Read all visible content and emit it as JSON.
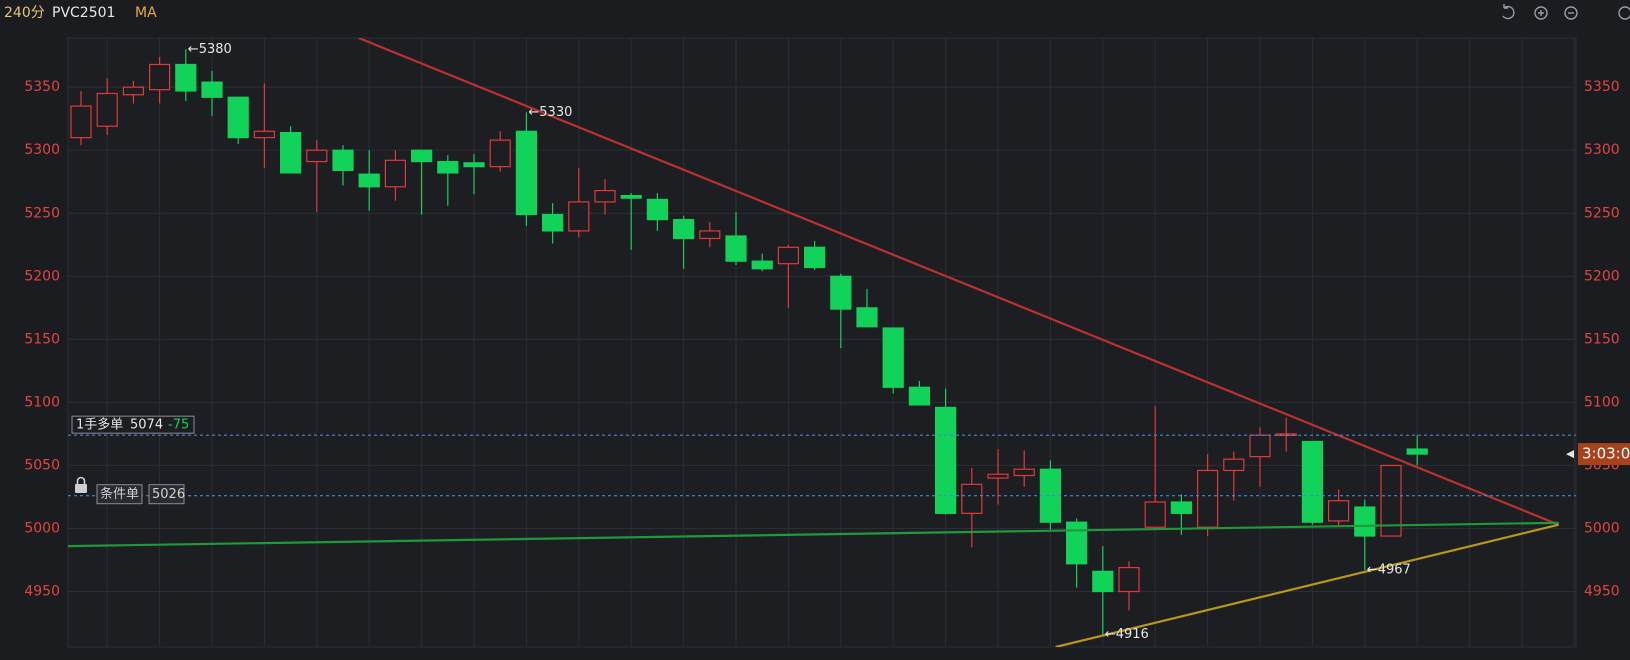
{
  "header": {
    "period": "240分",
    "symbol": "PVC2501",
    "indicator": "MA"
  },
  "chart_data": {
    "type": "candlestick",
    "open": [
      5310,
      5319,
      5344,
      5348,
      5368,
      5354,
      5342,
      5310,
      5314,
      5291,
      5300,
      5281,
      5271,
      5300,
      5291,
      5290,
      5287,
      5315,
      5249,
      5236,
      5259,
      5264,
      5261,
      5245,
      5230,
      5232,
      5212,
      5210,
      5223,
      5200,
      5175,
      5159,
      5112,
      5096,
      5012,
      5040,
      5042,
      5047,
      5005,
      4966,
      4950,
      5001,
      5021,
      5001,
      5046,
      5057,
      5074,
      5069,
      5006,
      5017,
      4994,
      5063
    ],
    "high": [
      5347,
      5357,
      5355,
      5374,
      5380,
      5363,
      5342,
      5353,
      5319,
      5308,
      5304,
      5300,
      5300,
      5300,
      5296,
      5297,
      5315,
      5330,
      5258,
      5286,
      5277,
      5266,
      5266,
      5248,
      5243,
      5251,
      5218,
      5225,
      5228,
      5202,
      5190,
      5159,
      5117,
      5111,
      5048,
      5063,
      5062,
      5054,
      5008,
      4986,
      4974,
      5097,
      5027,
      5059,
      5061,
      5080,
      5088,
      5069,
      5031,
      5023,
      5050,
      5074
    ],
    "low": [
      5304,
      5312,
      5337,
      5337,
      5339,
      5327,
      5305,
      5286,
      5282,
      5251,
      5272,
      5252,
      5260,
      5249,
      5256,
      5265,
      5283,
      5240,
      5226,
      5231,
      5249,
      5221,
      5236,
      5206,
      5223,
      5209,
      5204,
      5175,
      5205,
      5143,
      5160,
      5107,
      5098,
      5011,
      4985,
      5019,
      5033,
      4999,
      4953,
      4916,
      4935,
      5001,
      4995,
      4994,
      5022,
      5033,
      5061,
      5003,
      5002,
      4967,
      4994,
      5050
    ],
    "close": [
      5335,
      5345,
      5350,
      5368,
      5347,
      5342,
      5310,
      5315,
      5282,
      5300,
      5284,
      5271,
      5292,
      5291,
      5282,
      5287,
      5308,
      5249,
      5236,
      5259,
      5268,
      5262,
      5245,
      5230,
      5236,
      5212,
      5206,
      5223,
      5207,
      5174,
      5160,
      5112,
      5098,
      5012,
      5035,
      5043,
      5047,
      5005,
      4972,
      4950,
      4969,
      5021,
      5012,
      5046,
      5055,
      5074,
      5075,
      5005,
      5022,
      4994,
      5050,
      5059
    ],
    "up_color": "#e0393e",
    "down_color": "#12d35a",
    "ylim": [
      4906,
      5389
    ],
    "yticks": [
      4950,
      5000,
      5050,
      5100,
      5150,
      5200,
      5250,
      5300,
      5350
    ],
    "grid": true,
    "annotations": [
      {
        "value": 5380,
        "label": "←5380"
      },
      {
        "value": 5330,
        "label": "←5330"
      },
      {
        "value": 4916,
        "label": "←4916"
      },
      {
        "value": 4967,
        "label": "←4967"
      }
    ],
    "trendlines": [
      {
        "color": "#b83232",
        "x": [
          10.6,
          56.4
        ],
        "y": [
          5389,
          5003
        ]
      },
      {
        "color": "#1f9a3a",
        "x": [
          -0.5,
          56.4
        ],
        "y": [
          4986,
          5004.5
        ]
      },
      {
        "color": "#b8981a",
        "x": [
          37.2,
          56.4
        ],
        "y": [
          4906,
          5003
        ]
      }
    ],
    "orders": [
      {
        "label": "1手多单",
        "price": 5074,
        "change": -75
      },
      {
        "label": "条件单",
        "price": 5026
      }
    ],
    "countdown": "3:03:0"
  }
}
